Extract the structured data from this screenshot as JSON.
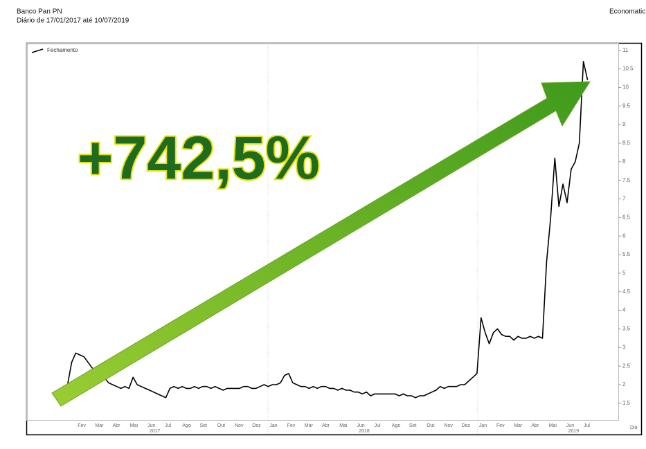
{
  "header": {
    "title": "Banco Pan PN",
    "subtitle": "Diário de 17/01/2017 até 10/07/2019",
    "source": "Economatic"
  },
  "chart_data": {
    "type": "line",
    "annotation": "+742,5%",
    "series": [
      {
        "name": "Fechamento",
        "color": "#000000",
        "values": [
          2.0,
          2.6,
          2.85,
          2.8,
          2.75,
          2.6,
          2.45,
          2.35,
          2.3,
          2.2,
          2.05,
          2.0,
          1.95,
          1.9,
          1.95,
          1.9,
          2.2,
          2.0,
          1.95,
          1.9,
          1.85,
          1.8,
          1.75,
          1.7,
          1.65,
          1.9,
          1.95,
          1.9,
          1.95,
          1.9,
          1.9,
          1.95,
          1.9,
          1.95,
          1.95,
          1.9,
          1.95,
          1.9,
          1.85,
          1.9,
          1.9,
          1.9,
          1.9,
          1.95,
          1.95,
          1.9,
          1.9,
          1.95,
          2.0,
          1.95,
          2.0,
          2.0,
          2.05,
          2.25,
          2.3,
          2.05,
          2.0,
          1.95,
          1.95,
          1.9,
          1.95,
          1.9,
          1.95,
          1.95,
          1.9,
          1.9,
          1.85,
          1.9,
          1.85,
          1.85,
          1.8,
          1.8,
          1.75,
          1.8,
          1.7,
          1.75,
          1.75,
          1.75,
          1.75,
          1.75,
          1.75,
          1.7,
          1.75,
          1.7,
          1.7,
          1.65,
          1.7,
          1.7,
          1.75,
          1.8,
          1.85,
          1.95,
          1.9,
          1.95,
          1.95,
          1.95,
          2.0,
          2.0,
          2.1,
          2.2,
          2.3,
          3.8,
          3.4,
          3.1,
          3.4,
          3.5,
          3.35,
          3.3,
          3.3,
          3.2,
          3.3,
          3.25,
          3.25,
          3.3,
          3.25,
          3.3,
          3.25,
          5.3,
          6.5,
          8.1,
          6.8,
          7.4,
          6.9,
          7.8,
          8.0,
          8.5,
          10.7,
          10.2
        ]
      }
    ],
    "ylim": [
      1.05,
      11.2
    ],
    "yticks": [
      1.5,
      2,
      2.5,
      3,
      3.5,
      4,
      4.5,
      5,
      5.5,
      6,
      6.5,
      7,
      7.5,
      8,
      8.5,
      9,
      9.5,
      10,
      10.5,
      11
    ],
    "x_tick_labels": [
      "Fev",
      "Mar",
      "Abr",
      "Mai",
      "Jun",
      "Jul",
      "Ago",
      "Set",
      "Out",
      "Nov",
      "Dez",
      "Jan",
      "Fev",
      "Mar",
      "Abr",
      "Mai",
      "Jun",
      "Jul",
      "Ago",
      "Set",
      "Out",
      "Nov",
      "Dez",
      "Jan",
      "Fev",
      "Mar",
      "Abr",
      "Mai",
      "Jun",
      "Jul"
    ],
    "x_year_labels": [
      "2017",
      "2018",
      "2019"
    ],
    "x_axis_unit": "Dia",
    "legend": "top-left"
  }
}
